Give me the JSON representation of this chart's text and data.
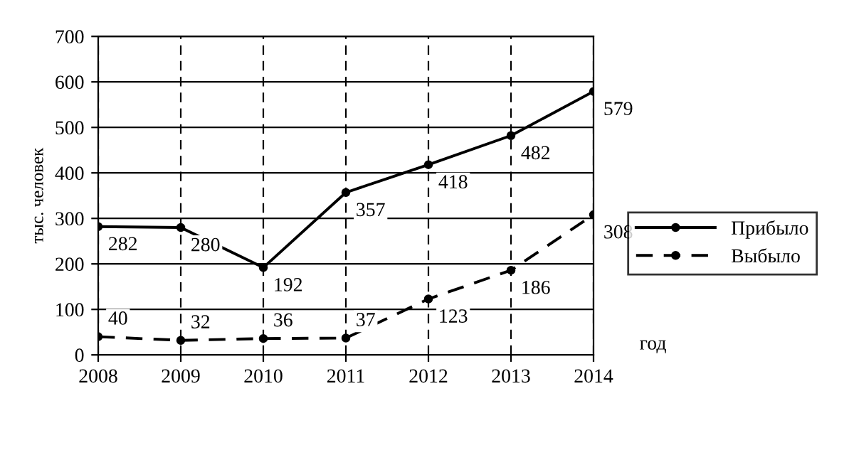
{
  "chart_data": {
    "type": "line",
    "xlabel": "год",
    "ylabel": "тыс. человек",
    "categories": [
      "2008",
      "2009",
      "2010",
      "2011",
      "2012",
      "2013",
      "2014"
    ],
    "series": [
      {
        "name": "Прибыло",
        "color": "#000000",
        "values": [
          282,
          280,
          192,
          357,
          418,
          482,
          579
        ],
        "line_style": "solid"
      },
      {
        "name": "Выбыло",
        "color": "#000000",
        "values": [
          40,
          32,
          36,
          37,
          123,
          186,
          308
        ],
        "line_style": "dashed"
      }
    ],
    "ylim": [
      0,
      700
    ],
    "yticks": [
      0,
      100,
      200,
      300,
      400,
      500,
      600,
      700
    ],
    "grid": true,
    "legend": "right",
    "marker": "circle",
    "data_labels": true
  }
}
